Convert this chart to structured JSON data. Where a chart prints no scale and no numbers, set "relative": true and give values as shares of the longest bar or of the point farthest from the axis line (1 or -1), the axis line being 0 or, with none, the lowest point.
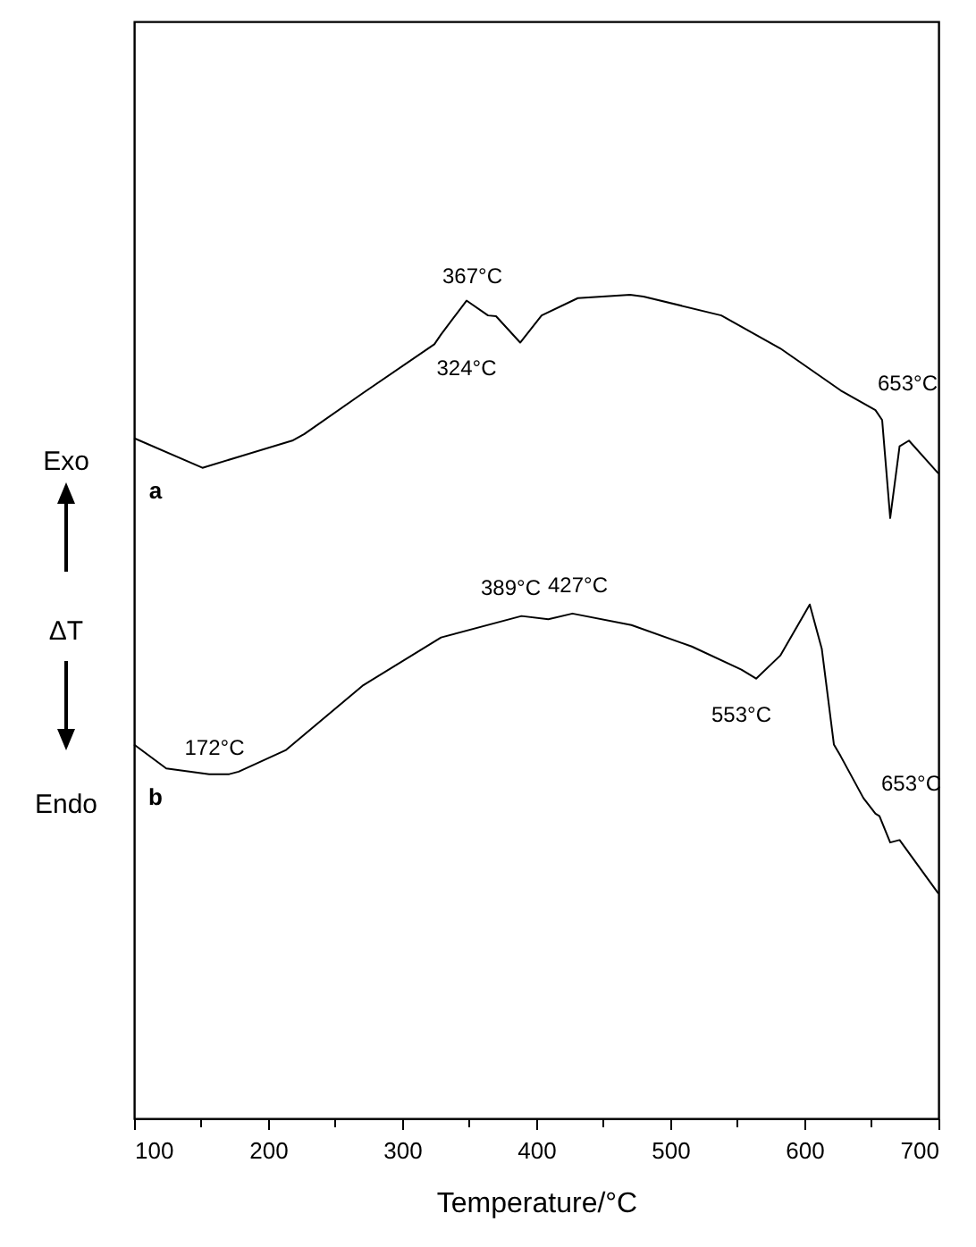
{
  "chart_data": {
    "type": "line",
    "relative": true,
    "xlabel": "Temperature/°C",
    "ylabel": "ΔT",
    "annotations": [
      "Exo",
      "Endo",
      {
        "text": "324°C",
        "x": 324,
        "y": 0.952
      },
      {
        "text": "367°C",
        "x": 367,
        "y": 0.975
      },
      {
        "text": "653°C",
        "x": 653,
        "y": 0.86
      },
      {
        "text": "172°C",
        "x": 172,
        "y": 0.418
      },
      {
        "text": "389°C",
        "x": 389,
        "y": 0.61
      },
      {
        "text": "427°C",
        "x": 427,
        "y": 0.613
      },
      {
        "text": "553°C",
        "x": 553,
        "y": 0.534
      },
      {
        "text": "653°C",
        "x": 653,
        "y": 0.37
      }
    ],
    "xlim": [
      100,
      700
    ],
    "xticks": [
      100,
      {
        "value": 150,
        "label": null
      },
      200,
      {
        "value": 250,
        "label": null
      },
      300,
      {
        "value": 350,
        "label": null
      },
      400,
      {
        "value": 450,
        "label": null
      },
      500,
      {
        "value": 550,
        "label": null
      },
      600,
      {
        "value": 650,
        "label": null
      },
      700
    ],
    "grid": false,
    "marker": "none",
    "line_style": "solid",
    "series": [
      {
        "name": "a",
        "color": "#000000",
        "x": [
          100,
          151,
          218,
          227,
          271,
          324,
          329,
          348,
          364,
          370,
          388,
          404,
          431,
          470,
          480,
          538,
          582,
          627,
          653,
          658,
          664,
          671,
          678,
          700
        ],
        "values": [
          0.826,
          0.79,
          0.823,
          0.831,
          0.881,
          0.94,
          0.952,
          0.993,
          0.975,
          0.974,
          0.942,
          0.975,
          0.996,
          1,
          0.998,
          0.975,
          0.935,
          0.884,
          0.86,
          0.848,
          0.729,
          0.816,
          0.823,
          0.783
        ]
      },
      {
        "name": "b",
        "color": "#000000",
        "x": [
          100,
          124,
          156,
          171,
          178,
          213,
          271,
          329,
          389,
          409,
          427,
          471,
          516,
          553,
          564,
          582,
          604,
          613,
          622,
          627,
          644,
          653,
          656,
          664,
          671,
          700
        ],
        "values": [
          0.454,
          0.425,
          0.418,
          0.418,
          0.421,
          0.447,
          0.526,
          0.584,
          0.61,
          0.606,
          0.613,
          0.599,
          0.573,
          0.545,
          0.534,
          0.562,
          0.624,
          0.57,
          0.454,
          0.44,
          0.389,
          0.37,
          0.367,
          0.335,
          0.338,
          0.273
        ]
      }
    ]
  }
}
